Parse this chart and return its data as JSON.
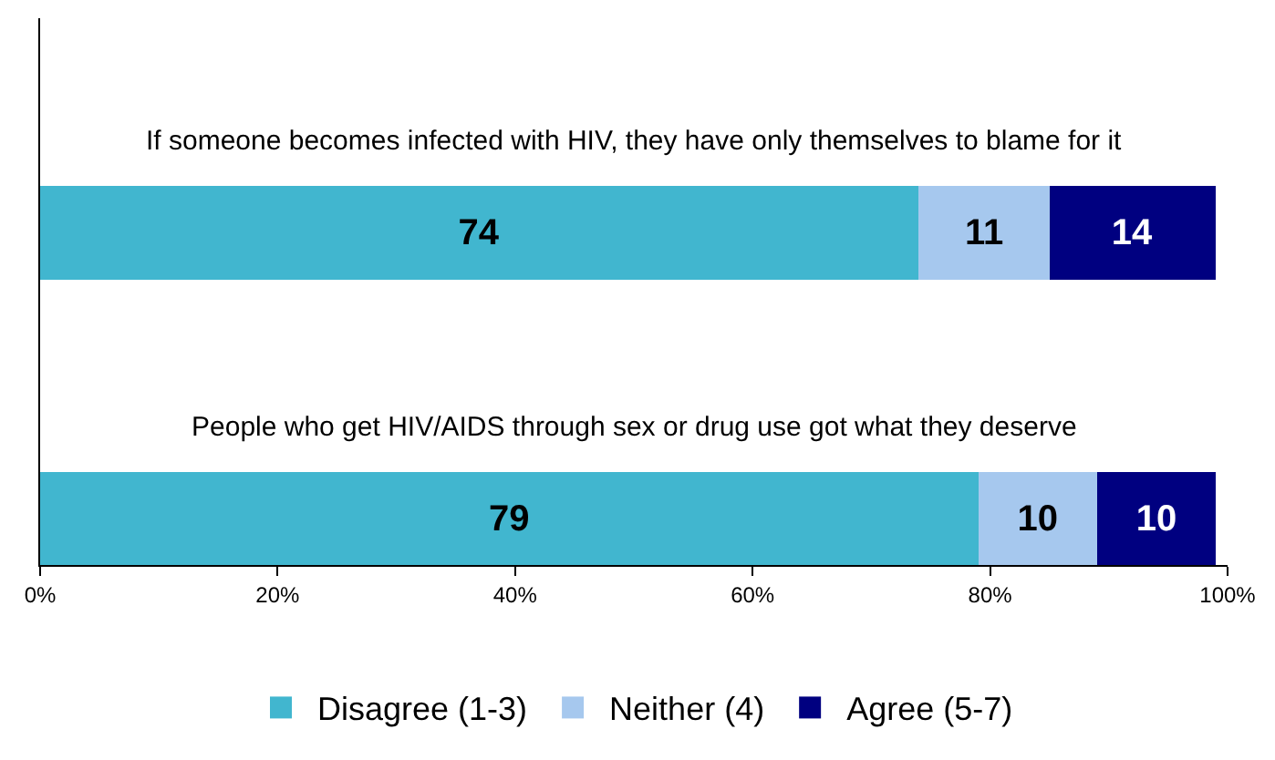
{
  "chart_data": {
    "type": "bar",
    "orientation": "horizontal",
    "stacked": true,
    "data_labels": true,
    "categories": [
      "If someone becomes infected with HIV, they have only themselves to blame for it",
      "People who get HIV/AIDS through sex or drug use got what they deserve"
    ],
    "series": [
      {
        "name": "Disagree (1-3)",
        "color": "#41b6cf",
        "values": [
          74,
          79
        ]
      },
      {
        "name": "Neither (4)",
        "color": "#a6c8ee",
        "values": [
          11,
          10
        ]
      },
      {
        "name": "Agree (5-7)",
        "color": "#000080",
        "values": [
          14,
          10
        ]
      }
    ],
    "xlim": [
      0,
      100
    ],
    "xticks": [
      {
        "value": 0,
        "label": "0%"
      },
      {
        "value": 20,
        "label": "20%"
      },
      {
        "value": 40,
        "label": "40%"
      },
      {
        "value": 60,
        "label": "60%"
      },
      {
        "value": 80,
        "label": "80%"
      },
      {
        "value": 100,
        "label": "100%"
      }
    ],
    "legend": "bottom"
  }
}
